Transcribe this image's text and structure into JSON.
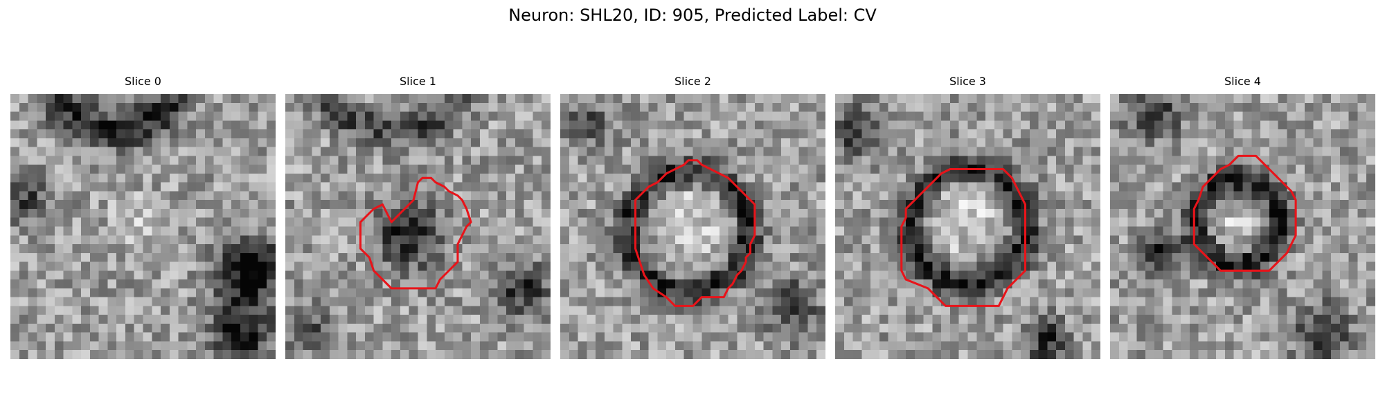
{
  "figure": {
    "title": "Neuron: SHL20, ID: 905, Predicted Label: CV"
  },
  "colors": {
    "contour": "#e8141a",
    "background": "#ffffff"
  },
  "slices": [
    {
      "label": "Slice 0"
    },
    {
      "label": "Slice 1"
    },
    {
      "label": "Slice 2"
    },
    {
      "label": "Slice 3"
    },
    {
      "label": "Slice 4"
    }
  ]
}
